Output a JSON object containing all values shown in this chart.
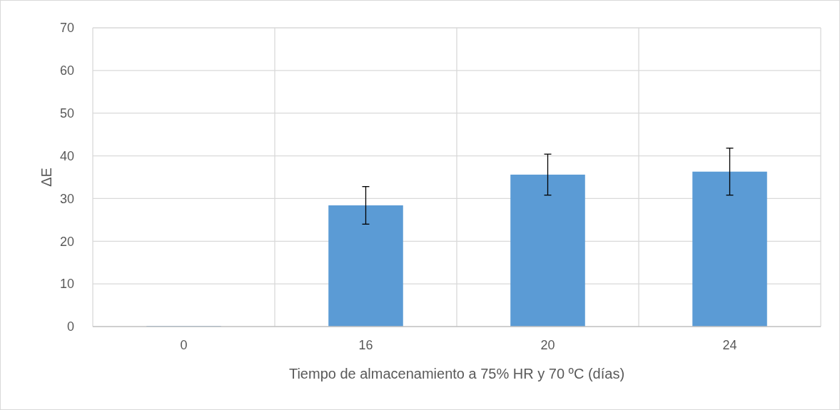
{
  "chart_data": {
    "type": "bar",
    "xlabel": "Tiempo de almacenamiento a 75% HR y 70 ºC (días)",
    "ylabel": "ΔE",
    "categories": [
      "0",
      "16",
      "20",
      "24"
    ],
    "values": [
      0,
      28.4,
      35.6,
      36.3
    ],
    "errors": [
      null,
      4.4,
      4.8,
      5.5
    ],
    "color": "#5b9bd5",
    "ylim": [
      0,
      70
    ],
    "yticks": [
      0,
      10,
      20,
      30,
      40,
      50,
      60,
      70
    ],
    "grid": true
  }
}
